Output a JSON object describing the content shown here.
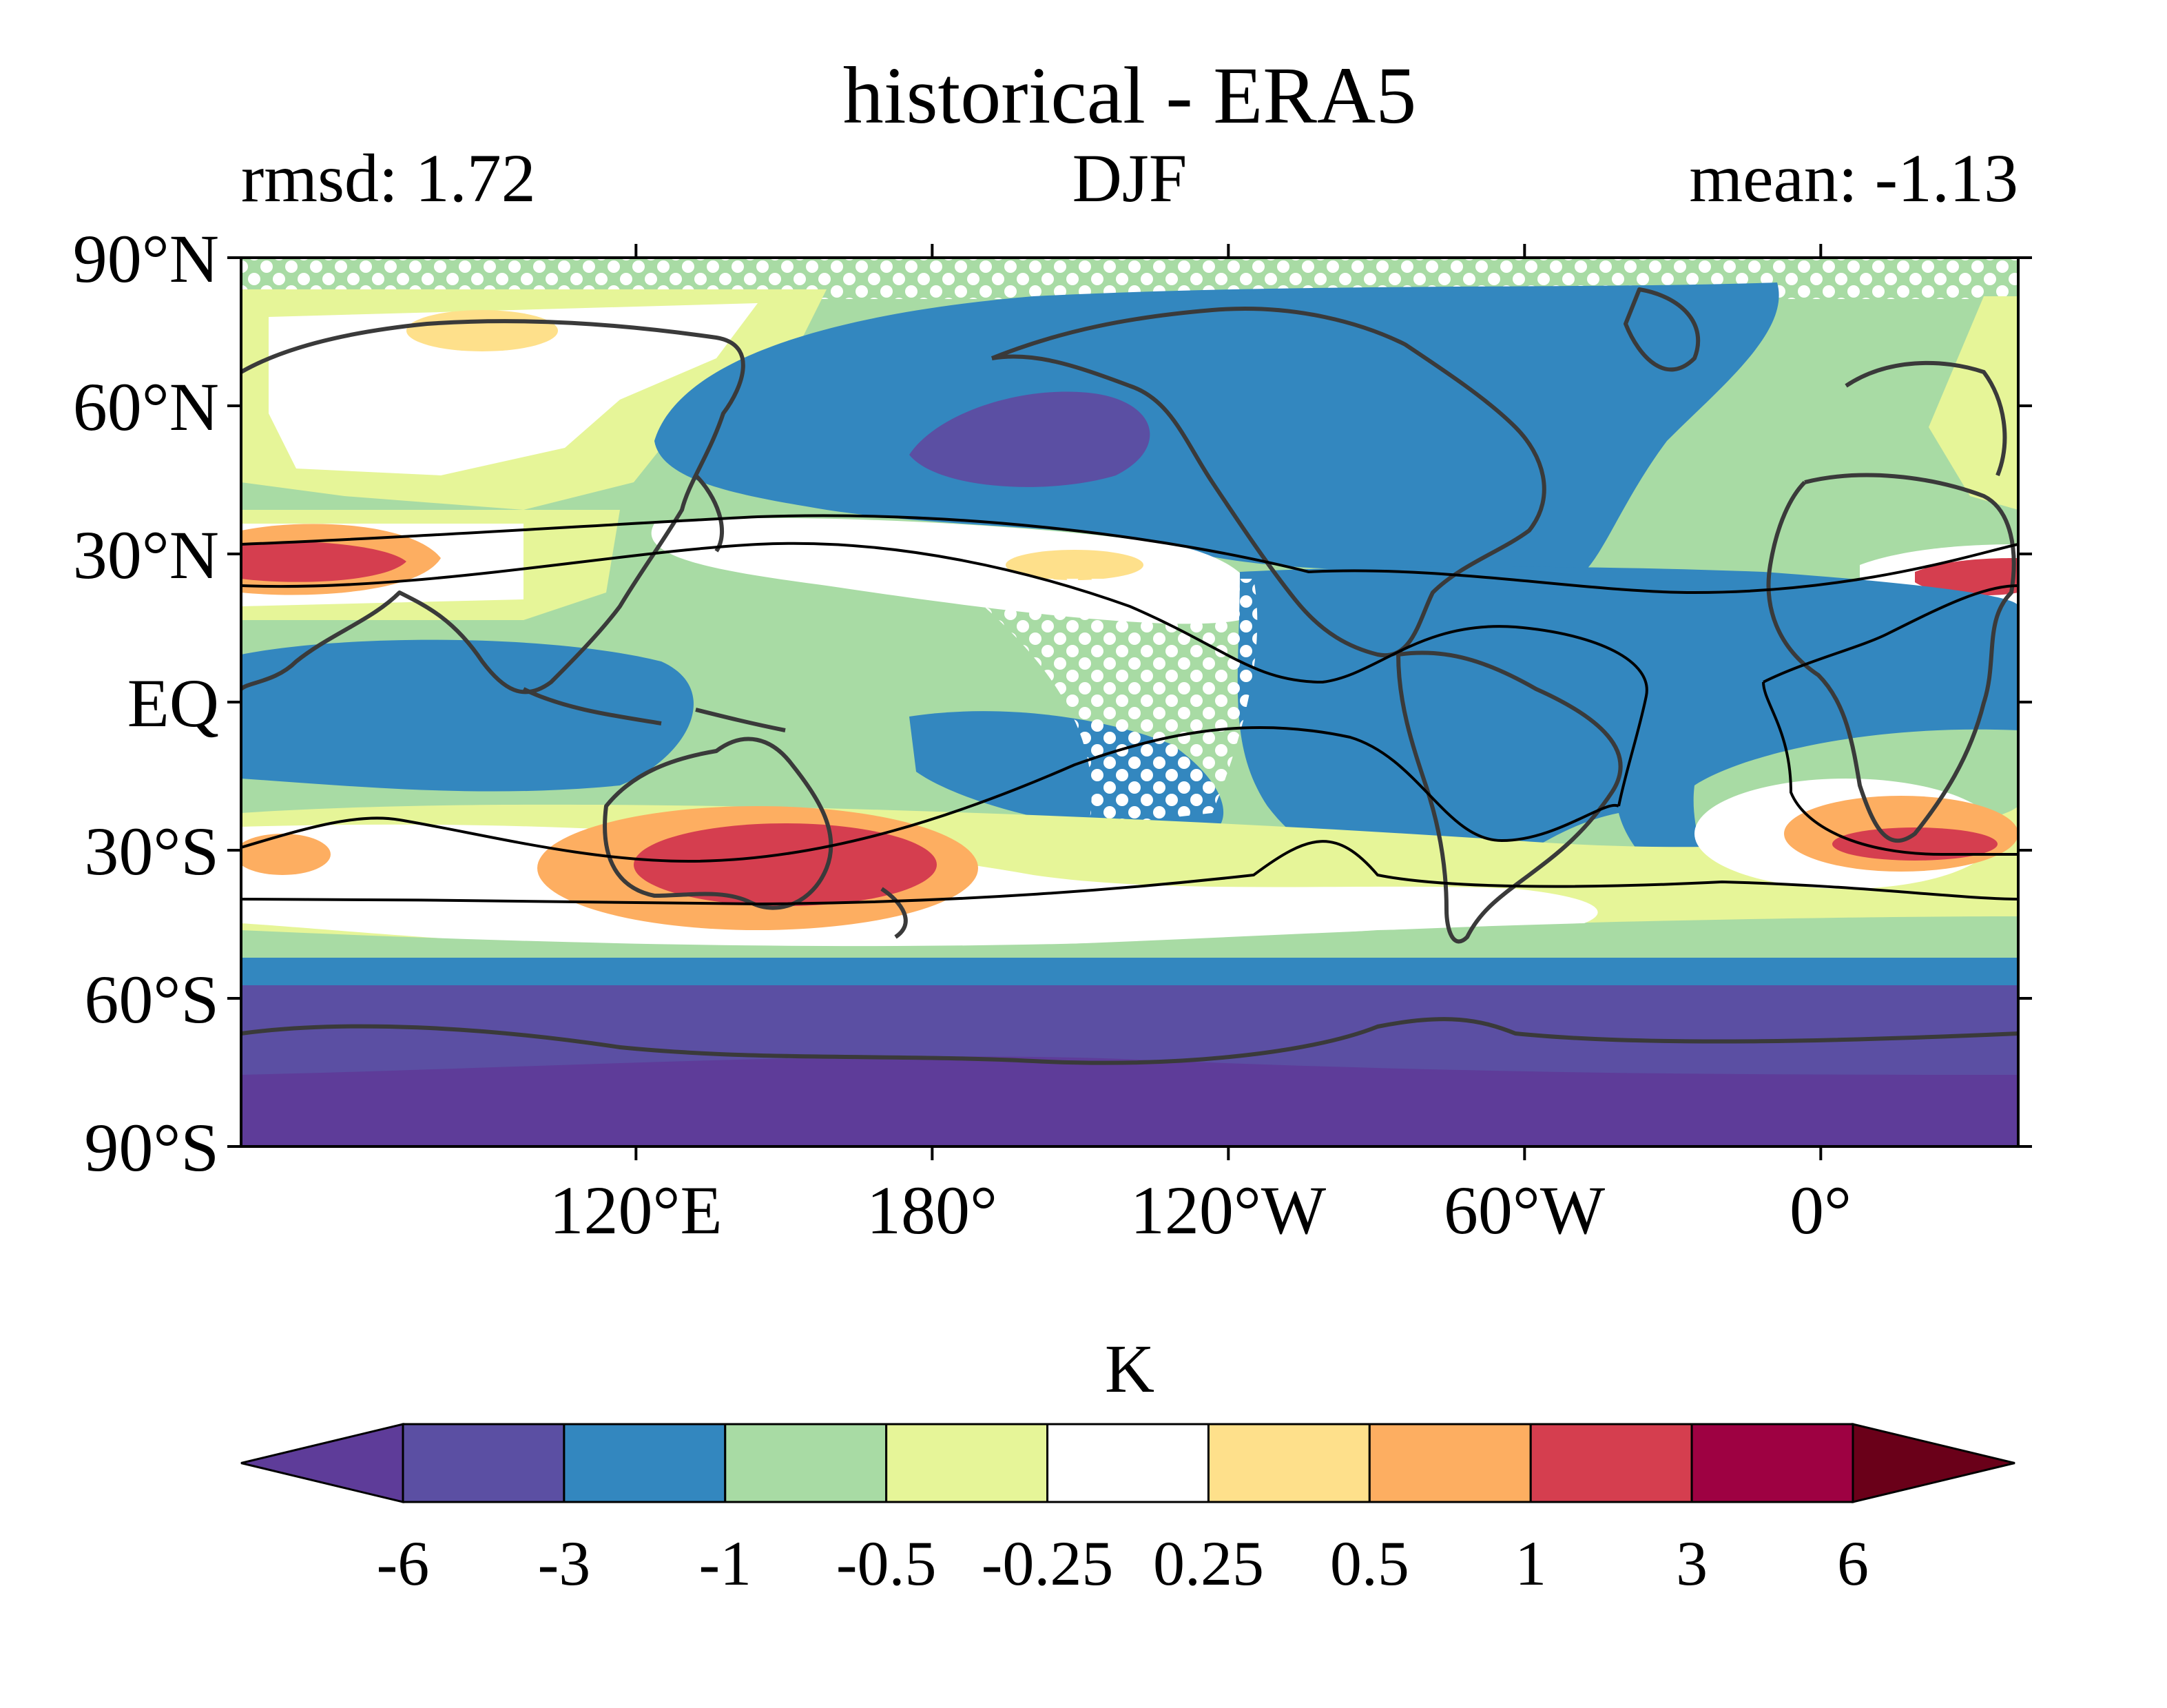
{
  "chart_data": {
    "type": "heatmap",
    "title": "historical - ERA5",
    "left_label": "rmsd: 1.72",
    "center_label": "DJF",
    "right_label": "mean: -1.13",
    "units": "K",
    "projection": "PlateCarree, central longitude 180",
    "x_ticks": [
      "120°E",
      "180°",
      "120°W",
      "60°W",
      "0°"
    ],
    "y_ticks": [
      "90°N",
      "60°N",
      "30°N",
      "EQ",
      "30°S",
      "60°S",
      "90°S"
    ],
    "y_tick_values": [
      90,
      60,
      30,
      0,
      -30,
      -60,
      -90
    ],
    "x_tick_values": [
      120,
      180,
      240,
      300,
      360
    ],
    "xlim": [
      40,
      400
    ],
    "ylim": [
      -90,
      90
    ],
    "levels": [
      "-6",
      "-3",
      "-1",
      "-0.5",
      "-0.25",
      "0.25",
      "0.5",
      "1",
      "3",
      "6"
    ],
    "level_colors": [
      "#5e3c99",
      "#5b4fa3",
      "#3387bf",
      "#a8dba4",
      "#e6f598",
      "#ffffff",
      "#fee08b",
      "#fdae61",
      "#d53e4f",
      "#9e0142",
      "#6a0019"
    ],
    "extend": "both",
    "colors": {
      "purple_deep": "#5e3c99",
      "purple": "#5b4fa3",
      "blue": "#3387bf",
      "green": "#a8dba4",
      "yellow_green": "#e6f598",
      "white": "#ffffff",
      "light_orange": "#fee08b",
      "orange": "#fdae61",
      "red": "#d53e4f",
      "dark_red": "#9e0142",
      "darkest_red": "#6a0019",
      "coast": "#3a3a3a"
    },
    "stippling": "white dots mark regions of significance",
    "overlay": "black contour lines of the subtropical jet"
  }
}
